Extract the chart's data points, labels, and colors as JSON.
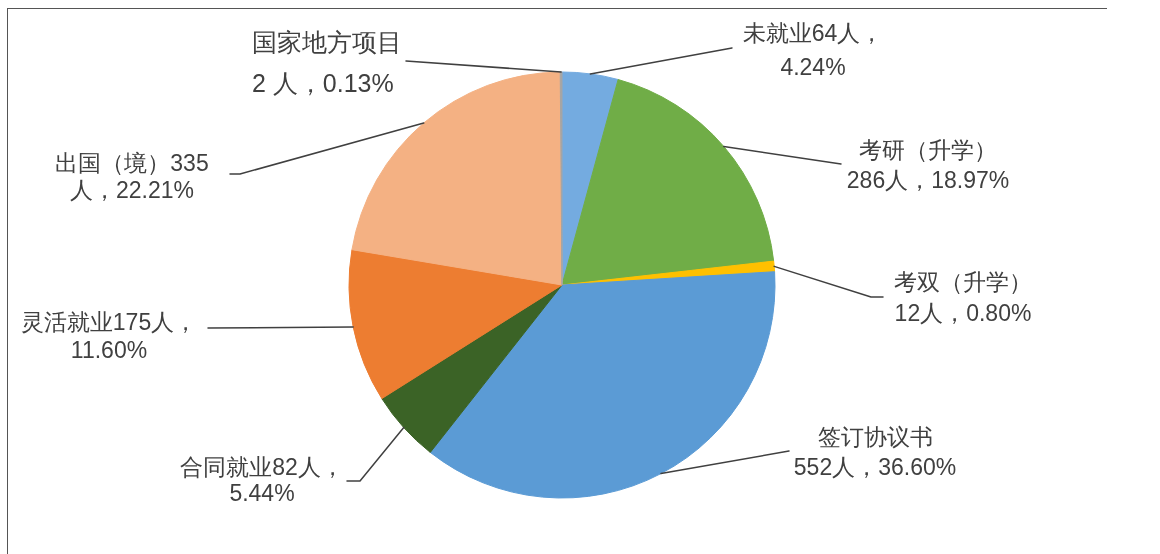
{
  "chart_data": {
    "type": "pie",
    "categories": [
      "未就业",
      "考研（升学）",
      "考双（升学）",
      "签订协议书",
      "合同就业",
      "灵活就业",
      "出国（境）",
      "国家地方项目"
    ],
    "values": [
      64,
      286,
      12,
      552,
      82,
      175,
      335,
      2
    ],
    "colors": [
      "#74abe0",
      "#70ad47",
      "#ffc000",
      "#5b9bd5",
      "#3b6326",
      "#ed7d31",
      "#f4b183",
      "#a5a5a5"
    ],
    "value_labels": [
      "64人，4.24%",
      "286人，18.97%",
      "12人，0.80%",
      "552人，36.60%",
      "82人，5.44%",
      "175人，11.60%",
      "335人，22.21%",
      "2 人，0.13%"
    ]
  }
}
